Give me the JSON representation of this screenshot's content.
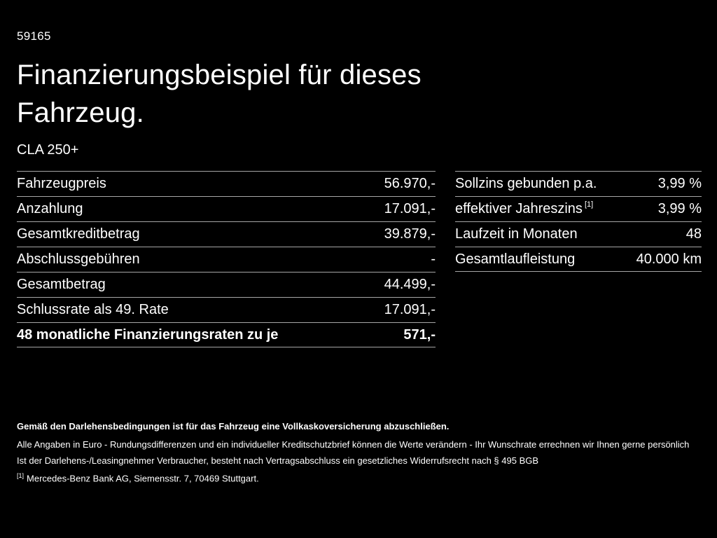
{
  "page": {
    "code": "59165",
    "title_line1": "Finanzierungsbeispiel für dieses",
    "title_line2": "Fahrzeug.",
    "model": "CLA 250+"
  },
  "left_table": {
    "rows": [
      {
        "label": "Fahrzeugpreis",
        "value": "56.970,-"
      },
      {
        "label": "Anzahlung",
        "value": "17.091,-"
      },
      {
        "label": "Gesamtkreditbetrag",
        "value": "39.879,-"
      },
      {
        "label": "Abschlussgebühren",
        "value": "-"
      },
      {
        "label": "Gesamtbetrag",
        "value": "44.499,-"
      },
      {
        "label": "Schlussrate als 49. Rate",
        "value": "17.091,-"
      },
      {
        "label": "48 monatliche Finanzierungsraten zu je",
        "value": "571,-"
      }
    ]
  },
  "right_table": {
    "rows": [
      {
        "label": "Sollzins gebunden p.a.",
        "sup": "",
        "value": "3,99 %"
      },
      {
        "label": "effektiver Jahreszins",
        "sup": "[1]",
        "value": "3,99 %"
      },
      {
        "label": "Laufzeit in Monaten",
        "sup": "",
        "value": "48"
      },
      {
        "label": "Gesamtlaufleistung",
        "sup": "",
        "value": "40.000 km"
      }
    ]
  },
  "footer": {
    "line1": "Gemäß den Darlehensbedingungen ist für das Fahrzeug eine Vollkaskoversicherung abzuschließen.",
    "line2": "Alle Angaben in Euro - Rundungsdifferenzen und ein individueller Kreditschutzbrief können die Werte verändern - Ihr Wunschrate errechnen wir Ihnen gerne persönlich",
    "line3": "Ist der Darlehens-/Leasingnehmer Verbraucher, besteht nach Vertragsabschluss ein gesetzliches Widerrufsrecht nach § 495 BGB",
    "footnote_marker": "[1]",
    "footnote_text": "Mercedes-Benz Bank AG, Siemensstr. 7, 70469 Stuttgart."
  },
  "colors": {
    "background": "#000000",
    "text": "#ffffff",
    "divider": "#a6a6a6"
  }
}
